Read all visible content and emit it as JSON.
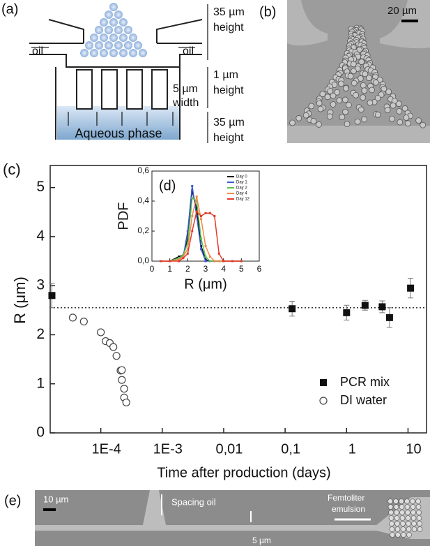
{
  "panels": {
    "a": {
      "labels": [
        "(a)",
        "oil",
        "oil",
        "Aqueous phase",
        "35 µm",
        "height",
        "1 µm",
        "height",
        "5 µm",
        "width",
        "35 µm",
        "height"
      ]
    },
    "b": {
      "labels": [
        "(b)",
        "20 µm"
      ]
    },
    "e": {
      "labels": [
        "(e)",
        "10 µm",
        "Spacing oil",
        "Femtoliter",
        "emulsion",
        "5 µm"
      ]
    }
  },
  "chart_data": [
    {
      "type": "scatter",
      "label": "(c)",
      "xlabel": "Time after production (days)",
      "ylabel": "R (μm)",
      "log_x": true,
      "xlim": [
        1.5e-05,
        20
      ],
      "ylim": [
        0,
        5.45
      ],
      "xticks": [
        {
          "value": 0.0001,
          "label": "1E-4"
        },
        {
          "value": 0.001,
          "label": "1E-3"
        },
        {
          "value": 0.01,
          "label": "0,01"
        },
        {
          "value": 0.1,
          "label": "0,1"
        },
        1,
        10
      ],
      "yticks": [
        0,
        1,
        2,
        3,
        4,
        5
      ],
      "ref_line": 2.55,
      "legend": "lower right",
      "series": [
        {
          "name": "PCR mix",
          "color": "#111111",
          "marker": "square",
          "x": [
            1.6e-05,
            0.13,
            1,
            2,
            3.8,
            5,
            11
          ],
          "values": [
            2.8,
            2.53,
            2.45,
            2.6,
            2.57,
            2.35,
            2.95
          ],
          "errors": [
            0.25,
            0.15,
            0.15,
            0.1,
            0.12,
            0.2,
            0.2
          ]
        },
        {
          "name": "DI water",
          "color": "#444444",
          "marker": "open-circle",
          "x": [
            3.5e-05,
            5.3e-05,
            0.0001,
            0.00012,
            0.00014,
            0.00016,
            0.00018,
            0.00021,
            0.00022,
            0.00022,
            0.00024,
            0.00024,
            0.00026
          ],
          "values": [
            2.35,
            2.27,
            2.05,
            1.87,
            1.83,
            1.75,
            1.57,
            1.27,
            1.28,
            1.08,
            0.9,
            0.72,
            0.62
          ]
        }
      ]
    },
    {
      "type": "line",
      "label": "(d)",
      "ylabel": "PDF",
      "xlabel": "R (μm)",
      "xlim": [
        0,
        6
      ],
      "ylim": [
        0,
        0.6
      ],
      "xticks": [
        0,
        1,
        2,
        3,
        4,
        5,
        6
      ],
      "yticks": [
        {
          "value": 0,
          "label": "0,0"
        },
        {
          "value": 0.2,
          "label": "0,2"
        },
        {
          "value": 0.4,
          "label": "0,4"
        },
        {
          "value": 0.6,
          "label": "0,6"
        }
      ],
      "x": [
        0.5,
        1,
        1.5,
        1.75,
        2,
        2.25,
        2.5,
        2.75,
        3,
        3.25,
        3.5,
        3.75,
        4,
        4.5,
        5
      ],
      "series": [
        {
          "name": "Day 0",
          "color": "#000000",
          "values": [
            0,
            0,
            0.03,
            0.04,
            0.15,
            0.47,
            0.35,
            0.1,
            0.01,
            0,
            0,
            0,
            0,
            0,
            0
          ]
        },
        {
          "name": "Day 1",
          "color": "#3b5bd6",
          "values": [
            0,
            0,
            0.02,
            0.03,
            0.2,
            0.5,
            0.3,
            0.08,
            0,
            0,
            0,
            0,
            0,
            0,
            0
          ]
        },
        {
          "name": "Day 2",
          "color": "#5cc24a",
          "values": [
            0,
            0,
            0.02,
            0.04,
            0.12,
            0.42,
            0.4,
            0.15,
            0.03,
            0,
            0,
            0,
            0,
            0,
            0
          ]
        },
        {
          "name": "Day 4",
          "color": "#f08a4b",
          "values": [
            0,
            0,
            0.01,
            0.03,
            0.08,
            0.3,
            0.43,
            0.28,
            0.1,
            0.03,
            0,
            0,
            0,
            0,
            0
          ]
        },
        {
          "name": "Day 12",
          "color": "#e53a2a",
          "values": [
            0,
            0,
            0,
            0.02,
            0.05,
            0.2,
            0.33,
            0.3,
            0.32,
            0.32,
            0.3,
            0.05,
            0,
            0,
            0
          ]
        }
      ]
    }
  ]
}
